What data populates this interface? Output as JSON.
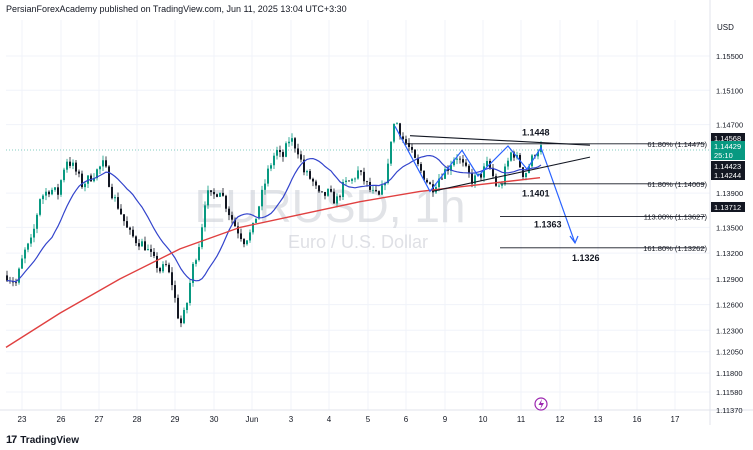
{
  "header": {
    "publisher": "PersianForexAcademy published on TradingView.com, Jun 11, 2025 13:04 UTC+3:30"
  },
  "currency": "USD",
  "watermark": {
    "symbol": "EURUSD, 1h",
    "description": "Euro / U.S. Dollar"
  },
  "footer": {
    "logo": "TradingView",
    "logo_mark": "17"
  },
  "chart_data": {
    "type": "candlestick",
    "symbol": "EURUSD",
    "interval": "1h",
    "ylim": [
      1.1137,
      1.1592
    ],
    "y_ticks": [
      1.155,
      1.151,
      1.147,
      1.139,
      1.135,
      1.132,
      1.129,
      1.126,
      1.123,
      1.1205,
      1.118,
      1.1158,
      1.1137
    ],
    "y_tick_labels": [
      "1.15500",
      "1.15100",
      "1.14700",
      "1.13900",
      "1.13500",
      "1.13200",
      "1.12900",
      "1.12600",
      "1.12300",
      "1.12050",
      "1.11800",
      "1.11580",
      "1.11370"
    ],
    "x_tick_labels": [
      "23",
      "26",
      "27",
      "28",
      "29",
      "30",
      "Jun",
      "3",
      "4",
      "5",
      "6",
      "9",
      "10",
      "11",
      "12",
      "13",
      "16",
      "17"
    ],
    "price_tags": [
      {
        "label": "1.14568",
        "value": 1.14568,
        "color": "#131722"
      },
      {
        "label": "1.14429",
        "value": 1.14429,
        "color": "#089981"
      },
      {
        "label": "25:10",
        "value": 1.1434,
        "color": "#089981"
      },
      {
        "label": "1.14423",
        "value": 1.1423,
        "color": "#131722"
      },
      {
        "label": "1.14244",
        "value": 1.1413,
        "color": "#131722"
      },
      {
        "label": "1.13712",
        "value": 1.13712,
        "color": "#131722"
      }
    ],
    "fib_levels": [
      {
        "label": "61.80% (1.14475)",
        "value": 1.14475
      },
      {
        "label": "61.80% (1.14009)",
        "value": 1.14009
      },
      {
        "label": "113.00% (1.13627)",
        "value": 1.13627
      },
      {
        "label": "161.80% (1.13262)",
        "value": 1.13262
      }
    ],
    "annotations": [
      {
        "label": "1.1448",
        "value": 1.1448
      },
      {
        "label": "1.1401",
        "value": 1.1401
      },
      {
        "label": "1.1363",
        "value": 1.1363
      },
      {
        "label": "1.1326",
        "value": 1.1326
      }
    ],
    "ma_series": [
      {
        "color": "#3344cc"
      },
      {
        "color": "#e04040"
      }
    ],
    "colors": {
      "up": "#089981",
      "down": "#131722",
      "pattern": "#2962ff",
      "trend": "#131722"
    },
    "grid": true
  }
}
